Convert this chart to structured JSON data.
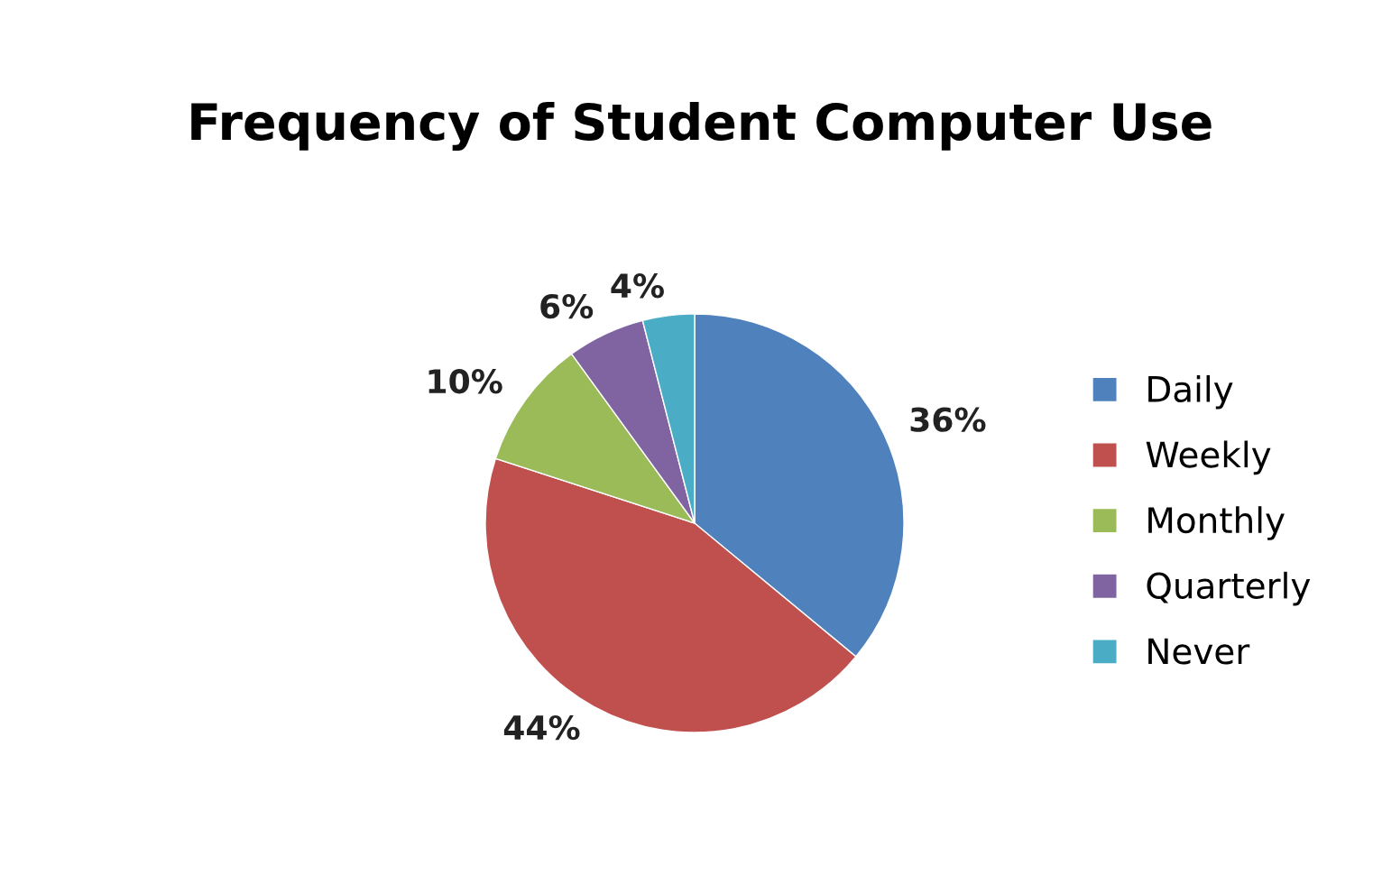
{
  "chart_data": {
    "type": "pie",
    "title": "Frequency of Student Computer Use",
    "categories": [
      "Daily",
      "Weekly",
      "Monthly",
      "Quarterly",
      "Never"
    ],
    "values": [
      36,
      44,
      10,
      6,
      4
    ],
    "colors": [
      "#4f81bd",
      "#c0504d",
      "#9bbb59",
      "#8064a2",
      "#4bacc6"
    ],
    "value_labels": [
      "36%",
      "44%",
      "10%",
      "6%",
      "4%"
    ],
    "legend": "right"
  }
}
